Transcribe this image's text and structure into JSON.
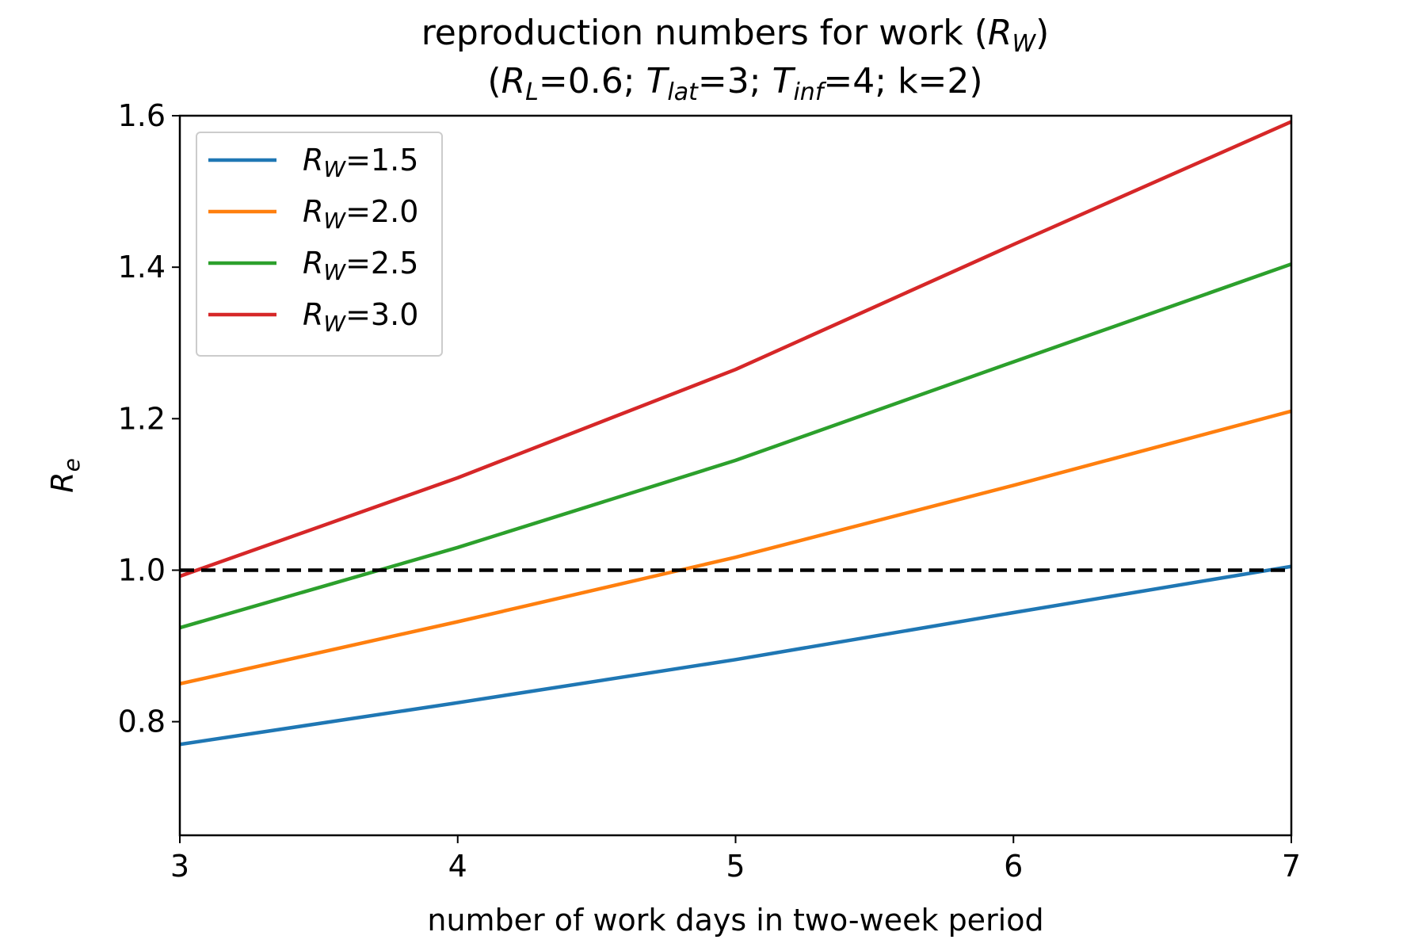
{
  "chart_data": {
    "type": "line",
    "title_lines": [
      "reproduction numbers for work (R",
      "(R",
      "=0.6; T",
      "=3; T",
      "=4; k=2)"
    ],
    "title": {
      "line1_prefix": "reproduction numbers for work (",
      "line1_var": "R",
      "line1_sub": "W",
      "line1_suffix": ")",
      "line2": {
        "open": "(",
        "rl_var": "R",
        "rl_sub": "L",
        "rl_val": "=0.6; ",
        "tlat_var": "T",
        "tlat_sub": "lat",
        "tlat_val": "=3; ",
        "tinf_var": "T",
        "tinf_sub": "inf",
        "tinf_val": "=4; k=2)"
      }
    },
    "xlabel": "number of work days in two-week period",
    "ylabel_var": "R",
    "ylabel_sub": "e",
    "xlim": [
      3,
      7
    ],
    "ylim": [
      0.65,
      1.6
    ],
    "x_ticks": [
      3,
      4,
      5,
      6,
      7
    ],
    "x_tick_labels": [
      "3",
      "4",
      "5",
      "6",
      "7"
    ],
    "y_ticks": [
      0.8,
      1.0,
      1.2,
      1.4,
      1.6
    ],
    "y_tick_labels": [
      "0.8",
      "1.0",
      "1.2",
      "1.4",
      "1.6"
    ],
    "x": [
      3,
      4,
      5,
      6,
      7
    ],
    "series": [
      {
        "name_var": "R",
        "name_sub": "W",
        "name_val": "=1.5",
        "color": "#1f77b4",
        "values": [
          0.77,
          0.825,
          0.882,
          0.944,
          1.005
        ]
      },
      {
        "name_var": "R",
        "name_sub": "W",
        "name_val": "=2.0",
        "color": "#ff7f0e",
        "values": [
          0.85,
          0.932,
          1.017,
          1.112,
          1.21
        ]
      },
      {
        "name_var": "R",
        "name_sub": "W",
        "name_val": "=2.5",
        "color": "#2ca02c",
        "values": [
          0.924,
          1.03,
          1.145,
          1.275,
          1.404
        ]
      },
      {
        "name_var": "R",
        "name_sub": "W",
        "name_val": "=3.0",
        "color": "#d62728",
        "values": [
          0.992,
          1.122,
          1.265,
          1.43,
          1.592
        ]
      }
    ],
    "reference_line": {
      "y": 1.0,
      "color": "#000000",
      "style": "dashed"
    },
    "legend_placement": "top-left",
    "grid": false
  }
}
